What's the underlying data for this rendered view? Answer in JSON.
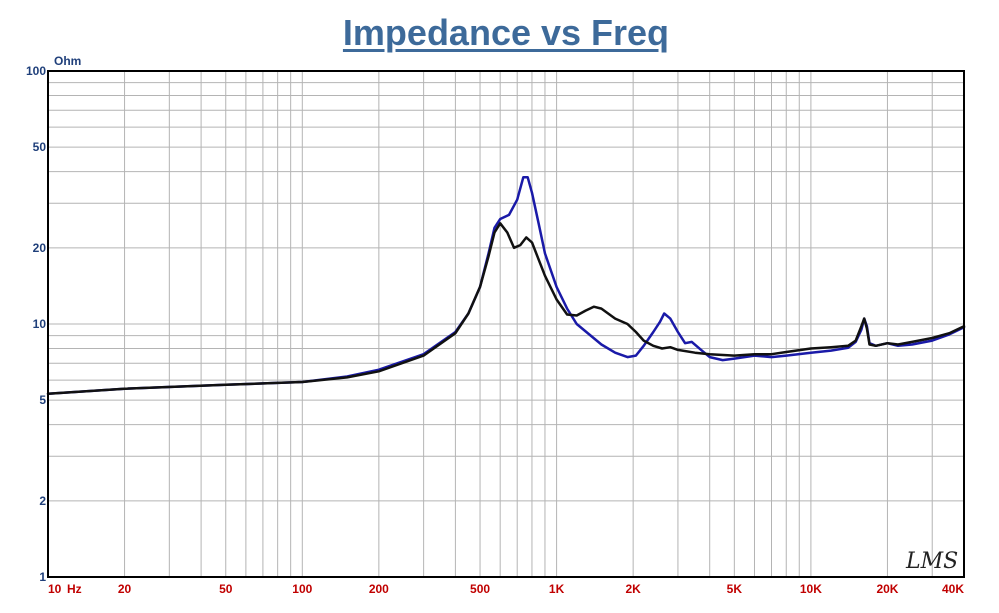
{
  "chart_data": {
    "type": "line",
    "title": "Impedance vs Freq",
    "ylabel": "Ohm",
    "xlabel": "",
    "x_scale": "log",
    "y_scale": "log",
    "xlim": [
      10,
      40000
    ],
    "ylim": [
      1,
      100
    ],
    "grid": true,
    "x_ticks": [
      {
        "value": 10,
        "label": "10"
      },
      {
        "value": 20,
        "label": "20"
      },
      {
        "value": 50,
        "label": "50"
      },
      {
        "value": 100,
        "label": "100"
      },
      {
        "value": 200,
        "label": "200"
      },
      {
        "value": 500,
        "label": "500"
      },
      {
        "value": 1000,
        "label": "1K"
      },
      {
        "value": 2000,
        "label": "2K"
      },
      {
        "value": 5000,
        "label": "5K"
      },
      {
        "value": 10000,
        "label": "10K"
      },
      {
        "value": 20000,
        "label": "20K"
      },
      {
        "value": 40000,
        "label": "40K"
      }
    ],
    "x_unit_label": "Hz",
    "y_ticks": [
      {
        "value": 1,
        "label": "1"
      },
      {
        "value": 2,
        "label": "2"
      },
      {
        "value": 5,
        "label": "5"
      },
      {
        "value": 10,
        "label": "10"
      },
      {
        "value": 20,
        "label": "20"
      },
      {
        "value": 50,
        "label": "50"
      },
      {
        "value": 100,
        "label": "100"
      }
    ],
    "series": [
      {
        "color": "#1a1aa8",
        "points": [
          [
            10,
            5.3
          ],
          [
            20,
            5.55
          ],
          [
            50,
            5.75
          ],
          [
            80,
            5.85
          ],
          [
            100,
            5.9
          ],
          [
            150,
            6.2
          ],
          [
            200,
            6.6
          ],
          [
            300,
            7.6
          ],
          [
            400,
            9.3
          ],
          [
            450,
            11
          ],
          [
            500,
            14
          ],
          [
            540,
            19
          ],
          [
            570,
            24
          ],
          [
            600,
            26
          ],
          [
            650,
            27
          ],
          [
            700,
            31
          ],
          [
            740,
            38
          ],
          [
            770,
            38
          ],
          [
            800,
            33
          ],
          [
            850,
            25
          ],
          [
            900,
            19
          ],
          [
            1000,
            14
          ],
          [
            1100,
            11.5
          ],
          [
            1200,
            10
          ],
          [
            1500,
            8.3
          ],
          [
            1700,
            7.7
          ],
          [
            1900,
            7.4
          ],
          [
            2050,
            7.5
          ],
          [
            2200,
            8.2
          ],
          [
            2400,
            9.3
          ],
          [
            2550,
            10.2
          ],
          [
            2650,
            11
          ],
          [
            2800,
            10.5
          ],
          [
            3000,
            9.3
          ],
          [
            3200,
            8.4
          ],
          [
            3400,
            8.5
          ],
          [
            3700,
            7.9
          ],
          [
            4000,
            7.4
          ],
          [
            4500,
            7.2
          ],
          [
            5000,
            7.3
          ],
          [
            6000,
            7.5
          ],
          [
            7000,
            7.4
          ],
          [
            8000,
            7.5
          ],
          [
            10000,
            7.7
          ],
          [
            12000,
            7.85
          ],
          [
            14000,
            8.05
          ],
          [
            15000,
            8.5
          ],
          [
            15800,
            9.5
          ],
          [
            16200,
            10.5
          ],
          [
            16600,
            9.8
          ],
          [
            17000,
            8.4
          ],
          [
            18000,
            8.2
          ],
          [
            20000,
            8.4
          ],
          [
            22000,
            8.2
          ],
          [
            25000,
            8.3
          ],
          [
            30000,
            8.6
          ],
          [
            35000,
            9.1
          ],
          [
            40000,
            9.7
          ]
        ]
      },
      {
        "color": "#111111",
        "points": [
          [
            10,
            5.3
          ],
          [
            20,
            5.55
          ],
          [
            50,
            5.75
          ],
          [
            80,
            5.85
          ],
          [
            100,
            5.9
          ],
          [
            150,
            6.15
          ],
          [
            200,
            6.5
          ],
          [
            300,
            7.5
          ],
          [
            400,
            9.2
          ],
          [
            450,
            11
          ],
          [
            500,
            14
          ],
          [
            540,
            18.5
          ],
          [
            570,
            23
          ],
          [
            600,
            25
          ],
          [
            640,
            23
          ],
          [
            680,
            20
          ],
          [
            720,
            20.5
          ],
          [
            760,
            22
          ],
          [
            800,
            21
          ],
          [
            850,
            18
          ],
          [
            900,
            15.5
          ],
          [
            1000,
            12.5
          ],
          [
            1100,
            10.9
          ],
          [
            1200,
            10.8
          ],
          [
            1300,
            11.3
          ],
          [
            1400,
            11.7
          ],
          [
            1500,
            11.5
          ],
          [
            1700,
            10.5
          ],
          [
            1900,
            10
          ],
          [
            2050,
            9.3
          ],
          [
            2200,
            8.6
          ],
          [
            2400,
            8.2
          ],
          [
            2600,
            8
          ],
          [
            2800,
            8.1
          ],
          [
            3000,
            7.9
          ],
          [
            3500,
            7.7
          ],
          [
            4000,
            7.6
          ],
          [
            5000,
            7.5
          ],
          [
            6000,
            7.6
          ],
          [
            7000,
            7.6
          ],
          [
            8000,
            7.75
          ],
          [
            10000,
            8
          ],
          [
            12000,
            8.1
          ],
          [
            14000,
            8.2
          ],
          [
            15000,
            8.6
          ],
          [
            15800,
            9.8
          ],
          [
            16200,
            10.5
          ],
          [
            16600,
            9.6
          ],
          [
            17000,
            8.3
          ],
          [
            18000,
            8.2
          ],
          [
            20000,
            8.4
          ],
          [
            22000,
            8.3
          ],
          [
            25000,
            8.5
          ],
          [
            30000,
            8.8
          ],
          [
            35000,
            9.2
          ],
          [
            40000,
            9.8
          ]
        ]
      }
    ]
  },
  "watermark": "LMS"
}
